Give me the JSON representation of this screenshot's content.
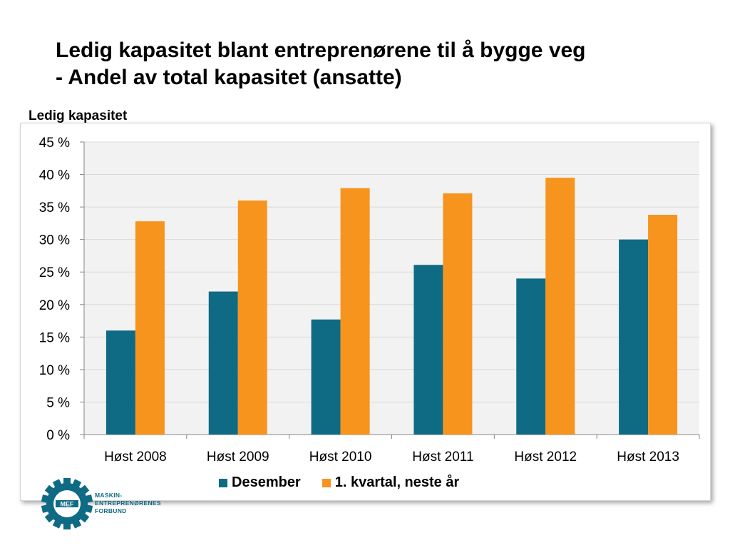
{
  "title_line1": "Ledig kapasitet blant entreprenørene til å bygge veg",
  "title_line2": "- Andel av total kapasitet (ansatte)",
  "logo": {
    "mark_text": "MEF",
    "line1": "MASKIN-",
    "line2": "ENTREPRENØRENES",
    "line3": "FORBUND",
    "color": "#0f6b84"
  },
  "colors": {
    "series1": "#0f6b84",
    "series2": "#f7941d",
    "plot_bg": "#f2f2f2",
    "grid": "#d9d9d9"
  },
  "chart_data": {
    "type": "bar",
    "ylabel": "Ledig kapasitet",
    "xlabel": "",
    "categories": [
      "Høst 2008",
      "Høst 2009",
      "Høst 2010",
      "Høst 2011",
      "Høst 2012",
      "Høst 2013"
    ],
    "series": [
      {
        "name": "Desember",
        "values": [
          16,
          22,
          17.7,
          26.1,
          24,
          30
        ]
      },
      {
        "name": "1. kvartal, neste år",
        "values": [
          32.8,
          36,
          37.9,
          37.1,
          39.5,
          33.8
        ]
      }
    ],
    "ylim": [
      0,
      45
    ],
    "yticks": [
      0,
      5,
      10,
      15,
      20,
      25,
      30,
      35,
      40,
      45
    ],
    "ytick_labels": [
      "0 %",
      "5 %",
      "10 %",
      "15 %",
      "20 %",
      "25 %",
      "30 %",
      "35 %",
      "40 %",
      "45 %"
    ],
    "grid": true,
    "legend": "bottom"
  }
}
